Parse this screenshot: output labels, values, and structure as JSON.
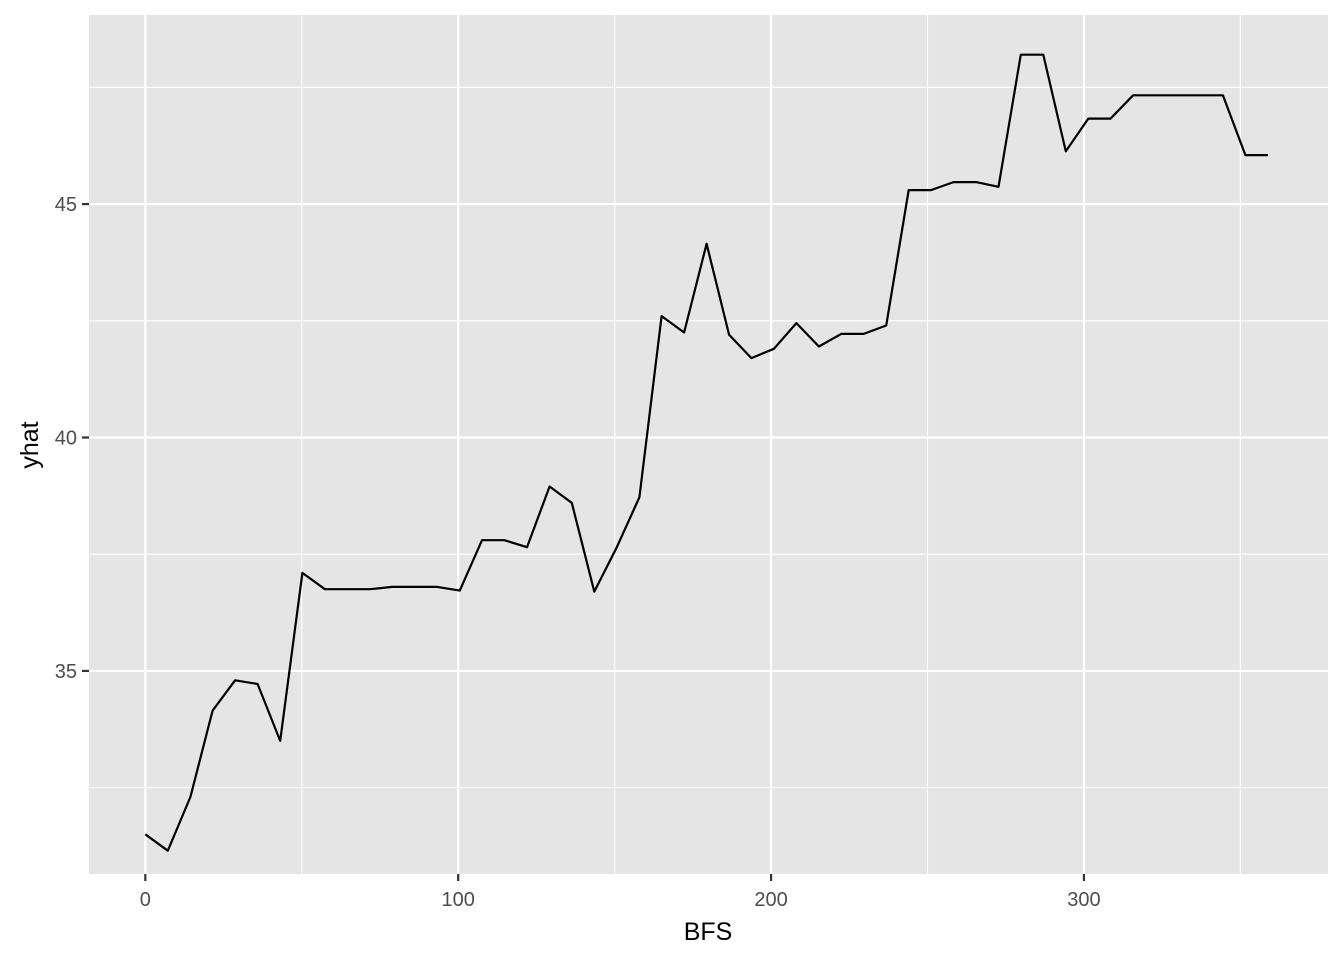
{
  "chart_data": {
    "type": "line",
    "xlabel": "BFS",
    "ylabel": "yhat",
    "xlim": [
      -18,
      378
    ],
    "ylim": [
      30.65,
      49.05
    ],
    "x_ticks": [
      0,
      100,
      200,
      300
    ],
    "y_ticks": [
      35,
      40,
      45
    ],
    "x_tick_labels": [
      "0",
      "100",
      "200",
      "300"
    ],
    "y_tick_labels": [
      "35",
      "40",
      "45"
    ],
    "grid": true,
    "background": "#e5e5e5",
    "grid_color": "#ffffff",
    "line_color": "#000000",
    "series": [
      {
        "x": [
          0,
          7.2,
          14.4,
          21.5,
          28.7,
          35.9,
          43.1,
          50.2,
          57.4,
          64.6,
          71.8,
          78.9,
          86.1,
          93.3,
          100.5,
          107.6,
          114.8,
          122,
          129.2,
          136.3,
          143.5,
          150.7,
          157.9,
          165,
          172.2,
          179.4,
          186.6,
          193.7,
          200.9,
          208.1,
          215.3,
          222.4,
          229.6,
          236.8,
          244,
          251.1,
          258.3,
          265.5,
          272.7,
          279.8,
          287,
          294.2,
          301.4,
          308.5,
          315.7,
          322.9,
          330.1,
          337.2,
          344.4,
          351.6,
          358.8
        ],
        "values": [
          31.5,
          31.15,
          32.3,
          34.15,
          34.8,
          34.72,
          33.5,
          37.1,
          36.75,
          36.75,
          36.75,
          36.8,
          36.8,
          36.8,
          36.72,
          37.8,
          37.8,
          37.65,
          38.95,
          38.6,
          36.7,
          37.65,
          38.72,
          42.6,
          42.25,
          44.15,
          42.2,
          41.7,
          41.9,
          42.45,
          41.95,
          42.22,
          42.22,
          42.4,
          45.3,
          45.3,
          45.47,
          45.47,
          45.37,
          48.2,
          48.2,
          46.13,
          46.83,
          46.83,
          47.33,
          47.33,
          47.33,
          47.33,
          47.33,
          46.05,
          46.05
        ]
      }
    ]
  }
}
